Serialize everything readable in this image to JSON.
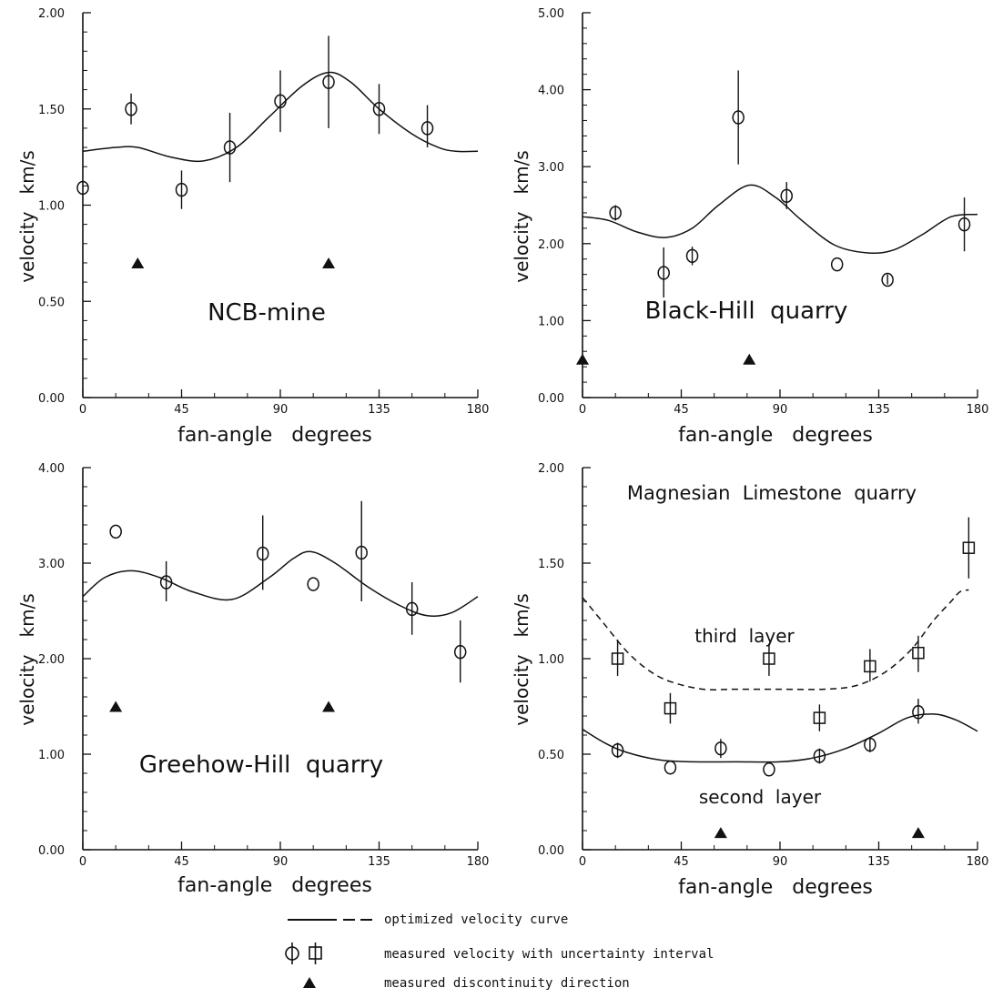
{
  "legend": {
    "curve": "optimized velocity curve",
    "measured": "measured velocity with uncertainty interval",
    "discontinuity": "measured discontinuity direction"
  },
  "chart_data": [
    {
      "type": "scatter",
      "title": "NCB-mine",
      "xlabel": "fan-angle   degrees",
      "ylabel": "velocity   km/s",
      "xlim": [
        0,
        180
      ],
      "ylim": [
        0,
        2
      ],
      "xticks": [
        "0",
        "45",
        "90",
        "135",
        "180"
      ],
      "yticks": [
        "0.00",
        "0.50",
        "1.00",
        "1.50",
        "2.00"
      ],
      "series": [
        {
          "kind": "circle",
          "points": [
            {
              "x": 0,
              "y": 1.09,
              "lo": 1.09,
              "hi": 1.09
            },
            {
              "x": 22,
              "y": 1.5,
              "lo": 1.42,
              "hi": 1.58
            },
            {
              "x": 45,
              "y": 1.08,
              "lo": 0.98,
              "hi": 1.18
            },
            {
              "x": 67,
              "y": 1.3,
              "lo": 1.12,
              "hi": 1.48
            },
            {
              "x": 90,
              "y": 1.54,
              "lo": 1.38,
              "hi": 1.7
            },
            {
              "x": 112,
              "y": 1.64,
              "lo": 1.4,
              "hi": 1.88
            },
            {
              "x": 135,
              "y": 1.5,
              "lo": 1.37,
              "hi": 1.63
            },
            {
              "x": 157,
              "y": 1.4,
              "lo": 1.3,
              "hi": 1.52
            }
          ]
        }
      ],
      "curves": [
        {
          "style": "solid",
          "points": [
            [
              0,
              1.28
            ],
            [
              15,
              1.3
            ],
            [
              25,
              1.3
            ],
            [
              40,
              1.25
            ],
            [
              55,
              1.23
            ],
            [
              70,
              1.3
            ],
            [
              85,
              1.46
            ],
            [
              100,
              1.62
            ],
            [
              112,
              1.69
            ],
            [
              122,
              1.64
            ],
            [
              135,
              1.5
            ],
            [
              150,
              1.37
            ],
            [
              162,
              1.3
            ],
            [
              170,
              1.28
            ],
            [
              180,
              1.28
            ]
          ]
        }
      ],
      "markers": [
        25,
        112
      ],
      "marker_y": 0.7
    },
    {
      "type": "scatter",
      "title": "Black-Hill  quarry",
      "xlabel": "fan-angle   degrees",
      "ylabel": "velocity   km/s",
      "xlim": [
        0,
        180
      ],
      "ylim": [
        0,
        5
      ],
      "xticks": [
        "0",
        "45",
        "90",
        "135",
        "180"
      ],
      "yticks": [
        "0.00",
        "1.00",
        "2.00",
        "3.00",
        "4.00",
        "5.00"
      ],
      "series": [
        {
          "kind": "circle",
          "points": [
            {
              "x": 15,
              "y": 2.4,
              "lo": 2.3,
              "hi": 2.5
            },
            {
              "x": 37,
              "y": 1.62,
              "lo": 1.3,
              "hi": 1.95
            },
            {
              "x": 50,
              "y": 1.84,
              "lo": 1.72,
              "hi": 1.96
            },
            {
              "x": 71,
              "y": 3.64,
              "lo": 3.03,
              "hi": 4.25
            },
            {
              "x": 93,
              "y": 2.62,
              "lo": 2.45,
              "hi": 2.8
            },
            {
              "x": 116,
              "y": 1.73,
              "lo": 1.73,
              "hi": 1.73
            },
            {
              "x": 139,
              "y": 1.53,
              "lo": 1.47,
              "hi": 1.6
            },
            {
              "x": 174,
              "y": 2.25,
              "lo": 1.9,
              "hi": 2.6
            }
          ]
        }
      ],
      "curves": [
        {
          "style": "solid",
          "points": [
            [
              0,
              2.35
            ],
            [
              12,
              2.3
            ],
            [
              25,
              2.15
            ],
            [
              38,
              2.08
            ],
            [
              50,
              2.2
            ],
            [
              62,
              2.5
            ],
            [
              76,
              2.76
            ],
            [
              88,
              2.6
            ],
            [
              100,
              2.3
            ],
            [
              115,
              1.98
            ],
            [
              130,
              1.88
            ],
            [
              142,
              1.92
            ],
            [
              155,
              2.12
            ],
            [
              168,
              2.35
            ],
            [
              180,
              2.38
            ]
          ]
        }
      ],
      "markers": [
        0,
        76
      ],
      "marker_y": 0.5
    },
    {
      "type": "scatter",
      "title": "Greehow-Hill  quarry",
      "xlabel": "fan-angle   degrees",
      "ylabel": "velocity   km/s",
      "xlim": [
        0,
        180
      ],
      "ylim": [
        0,
        4
      ],
      "xticks": [
        "0",
        "45",
        "90",
        "135",
        "180"
      ],
      "yticks": [
        "0.00",
        "1.00",
        "2.00",
        "3.00",
        "4.00"
      ],
      "series": [
        {
          "kind": "circle",
          "points": [
            {
              "x": 15,
              "y": 3.33,
              "lo": 3.33,
              "hi": 3.33
            },
            {
              "x": 38,
              "y": 2.8,
              "lo": 2.6,
              "hi": 3.02
            },
            {
              "x": 82,
              "y": 3.1,
              "lo": 2.72,
              "hi": 3.5
            },
            {
              "x": 105,
              "y": 2.78,
              "lo": 2.78,
              "hi": 2.78
            },
            {
              "x": 127,
              "y": 3.11,
              "lo": 2.6,
              "hi": 3.65
            },
            {
              "x": 150,
              "y": 2.52,
              "lo": 2.25,
              "hi": 2.8
            },
            {
              "x": 172,
              "y": 2.07,
              "lo": 1.75,
              "hi": 2.4
            }
          ]
        }
      ],
      "curves": [
        {
          "style": "solid",
          "points": [
            [
              0,
              2.65
            ],
            [
              10,
              2.85
            ],
            [
              22,
              2.92
            ],
            [
              35,
              2.85
            ],
            [
              50,
              2.7
            ],
            [
              68,
              2.62
            ],
            [
              85,
              2.85
            ],
            [
              96,
              3.05
            ],
            [
              104,
              3.12
            ],
            [
              115,
              3.0
            ],
            [
              130,
              2.75
            ],
            [
              145,
              2.55
            ],
            [
              157,
              2.45
            ],
            [
              168,
              2.48
            ],
            [
              180,
              2.65
            ]
          ]
        }
      ],
      "markers": [
        15,
        112
      ],
      "marker_y": 1.5
    },
    {
      "type": "scatter",
      "title": "Magnesian  Limestone  quarry",
      "xlabel": "fan-angle   degrees",
      "ylabel": "velocity   km/s",
      "xlim": [
        0,
        180
      ],
      "ylim": [
        0,
        2
      ],
      "xticks": [
        "0",
        "45",
        "90",
        "135",
        "180"
      ],
      "yticks": [
        "0.00",
        "0.50",
        "1.00",
        "1.50",
        "2.00"
      ],
      "annotations": {
        "upper": "third  layer",
        "lower": "second  layer"
      },
      "series": [
        {
          "name": "third  layer",
          "kind": "square",
          "points": [
            {
              "x": 16,
              "y": 1.0,
              "lo": 0.91,
              "hi": 1.1
            },
            {
              "x": 40,
              "y": 0.74,
              "lo": 0.66,
              "hi": 0.82
            },
            {
              "x": 85,
              "y": 1.0,
              "lo": 0.91,
              "hi": 1.08
            },
            {
              "x": 108,
              "y": 0.69,
              "lo": 0.62,
              "hi": 0.76
            },
            {
              "x": 131,
              "y": 0.96,
              "lo": 0.88,
              "hi": 1.05
            },
            {
              "x": 153,
              "y": 1.03,
              "lo": 0.93,
              "hi": 1.12
            },
            {
              "x": 176,
              "y": 1.58,
              "lo": 1.42,
              "hi": 1.74
            }
          ]
        },
        {
          "name": "second  layer",
          "kind": "circle",
          "points": [
            {
              "x": 16,
              "y": 0.52,
              "lo": 0.48,
              "hi": 0.56
            },
            {
              "x": 40,
              "y": 0.43,
              "lo": 0.43,
              "hi": 0.43
            },
            {
              "x": 63,
              "y": 0.53,
              "lo": 0.48,
              "hi": 0.58
            },
            {
              "x": 85,
              "y": 0.42,
              "lo": 0.42,
              "hi": 0.42
            },
            {
              "x": 108,
              "y": 0.49,
              "lo": 0.45,
              "hi": 0.53
            },
            {
              "x": 131,
              "y": 0.55,
              "lo": 0.51,
              "hi": 0.59
            },
            {
              "x": 153,
              "y": 0.72,
              "lo": 0.66,
              "hi": 0.79
            }
          ]
        }
      ],
      "curves": [
        {
          "style": "dashed",
          "points": [
            [
              0,
              1.32
            ],
            [
              10,
              1.18
            ],
            [
              20,
              1.04
            ],
            [
              30,
              0.94
            ],
            [
              40,
              0.88
            ],
            [
              55,
              0.84
            ],
            [
              70,
              0.84
            ],
            [
              90,
              0.84
            ],
            [
              110,
              0.84
            ],
            [
              125,
              0.86
            ],
            [
              138,
              0.93
            ],
            [
              150,
              1.05
            ],
            [
              160,
              1.2
            ],
            [
              168,
              1.3
            ],
            [
              172,
              1.35
            ],
            [
              176,
              1.36
            ]
          ]
        },
        {
          "style": "solid",
          "points": [
            [
              0,
              0.63
            ],
            [
              10,
              0.56
            ],
            [
              20,
              0.51
            ],
            [
              35,
              0.47
            ],
            [
              50,
              0.46
            ],
            [
              70,
              0.46
            ],
            [
              90,
              0.46
            ],
            [
              105,
              0.48
            ],
            [
              120,
              0.53
            ],
            [
              135,
              0.61
            ],
            [
              148,
              0.69
            ],
            [
              160,
              0.71
            ],
            [
              170,
              0.68
            ],
            [
              180,
              0.62
            ]
          ]
        }
      ],
      "markers": [
        63,
        153
      ],
      "marker_y": 0.09
    }
  ]
}
